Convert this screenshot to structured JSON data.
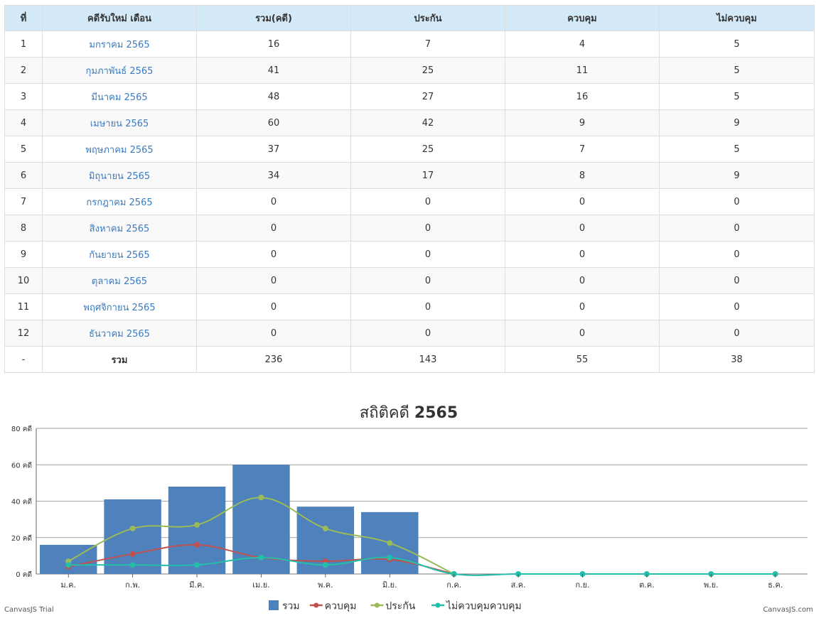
{
  "table": {
    "headers": [
      "ที่",
      "คดีรับใหม่ เดือน",
      "รวม(คดี)",
      "ประกัน",
      "ควบคุม",
      "ไม่ควบคุม"
    ],
    "rows": [
      {
        "no": "1",
        "month": "มกราคม 2565",
        "total": "16",
        "bail": "7",
        "custody": "4",
        "no_custody": "5"
      },
      {
        "no": "2",
        "month": "กุมภาพันธ์ 2565",
        "total": "41",
        "bail": "25",
        "custody": "11",
        "no_custody": "5"
      },
      {
        "no": "3",
        "month": "มีนาคม 2565",
        "total": "48",
        "bail": "27",
        "custody": "16",
        "no_custody": "5"
      },
      {
        "no": "4",
        "month": "เมษายน 2565",
        "total": "60",
        "bail": "42",
        "custody": "9",
        "no_custody": "9"
      },
      {
        "no": "5",
        "month": "พฤษภาคม 2565",
        "total": "37",
        "bail": "25",
        "custody": "7",
        "no_custody": "5"
      },
      {
        "no": "6",
        "month": "มิถุนายน 2565",
        "total": "34",
        "bail": "17",
        "custody": "8",
        "no_custody": "9"
      },
      {
        "no": "7",
        "month": "กรกฎาคม 2565",
        "total": "0",
        "bail": "0",
        "custody": "0",
        "no_custody": "0"
      },
      {
        "no": "8",
        "month": "สิงหาคม 2565",
        "total": "0",
        "bail": "0",
        "custody": "0",
        "no_custody": "0"
      },
      {
        "no": "9",
        "month": "กันยายน 2565",
        "total": "0",
        "bail": "0",
        "custody": "0",
        "no_custody": "0"
      },
      {
        "no": "10",
        "month": "ตุลาคม 2565",
        "total": "0",
        "bail": "0",
        "custody": "0",
        "no_custody": "0"
      },
      {
        "no": "11",
        "month": "พฤศจิกายน 2565",
        "total": "0",
        "bail": "0",
        "custody": "0",
        "no_custody": "0"
      },
      {
        "no": "12",
        "month": "ธันวาคม 2565",
        "total": "0",
        "bail": "0",
        "custody": "0",
        "no_custody": "0"
      }
    ],
    "totals": {
      "no": "-",
      "label": "รวม",
      "total": "236",
      "bail": "143",
      "custody": "55",
      "no_custody": "38"
    }
  },
  "chart_data": {
    "type": "bar",
    "title_prefix": "สถิติคดี ",
    "title_year": "2565",
    "categories": [
      "ม.ค.",
      "ก.พ.",
      "มี.ค.",
      "เม.ย.",
      "พ.ค.",
      "มิ.ย.",
      "ก.ค.",
      "ส.ค.",
      "ก.ย.",
      "ต.ค.",
      "พ.ย.",
      "ธ.ค."
    ],
    "y_unit": "คดี",
    "ylim": [
      0,
      80
    ],
    "y_ticks": [
      0,
      20,
      40,
      60,
      80
    ],
    "grid": true,
    "legend_position": "bottom",
    "series": [
      {
        "name": "รวม",
        "kind": "bar",
        "color": "#4f81bc",
        "values": [
          16,
          41,
          48,
          60,
          37,
          34,
          0,
          0,
          0,
          0,
          0,
          0
        ]
      },
      {
        "name": "ควบคุม",
        "kind": "spline",
        "color": "#c0504e",
        "values": [
          4,
          11,
          16,
          9,
          7,
          8,
          0,
          null,
          null,
          null,
          null,
          null
        ]
      },
      {
        "name": "ประกัน",
        "kind": "spline",
        "color": "#9bbb58",
        "values": [
          7,
          25,
          27,
          42,
          25,
          17,
          0,
          null,
          null,
          null,
          null,
          null
        ]
      },
      {
        "name": "ไม่ควบคุมควบคุม",
        "kind": "spline",
        "color": "#23bfaa",
        "values": [
          5,
          5,
          5,
          9,
          5,
          9,
          0,
          0,
          0,
          0,
          0,
          0
        ]
      }
    ]
  },
  "footer": {
    "trial": "CanvasJS Trial",
    "site": "CanvasJS.com"
  }
}
